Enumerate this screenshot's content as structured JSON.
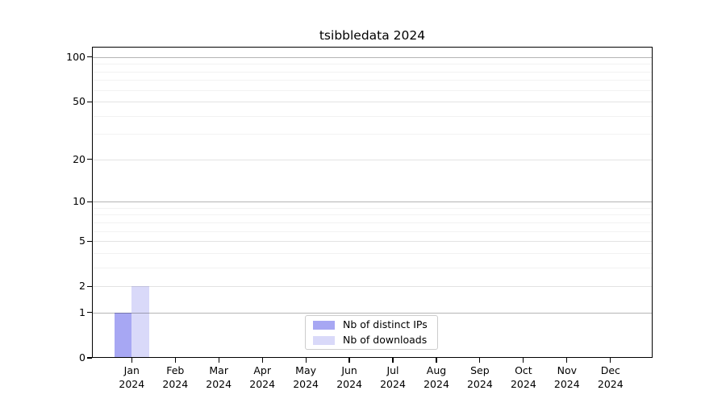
{
  "chart_data": {
    "type": "bar",
    "title": "tsibbledata 2024",
    "categories": [
      "Jan 2024",
      "Feb 2024",
      "Mar 2024",
      "Apr 2024",
      "May 2024",
      "Jun 2024",
      "Jul 2024",
      "Aug 2024",
      "Sep 2024",
      "Oct 2024",
      "Nov 2024",
      "Dec 2024"
    ],
    "series": [
      {
        "name": "Nb of distinct IPs",
        "color": "#a7a7f3",
        "values": [
          1,
          0,
          0,
          0,
          0,
          0,
          0,
          0,
          0,
          0,
          0,
          0
        ]
      },
      {
        "name": "Nb of downloads",
        "color": "#d9d9f9",
        "values": [
          2,
          0,
          0,
          0,
          0,
          0,
          0,
          0,
          0,
          0,
          0,
          0
        ]
      }
    ],
    "yscale": "log10(value+1)",
    "ylim": [
      0,
      118
    ],
    "yticks": [
      0,
      1,
      2,
      5,
      10,
      20,
      50,
      100
    ],
    "yticks_emphasized": [
      1,
      10,
      100
    ],
    "minor_gridlines": [
      3,
      4,
      6,
      7,
      8,
      9,
      30,
      40,
      60,
      70,
      80,
      90
    ],
    "grid": true,
    "legend": {
      "position": "inside-bottom-center",
      "labels": [
        "Nb of distinct IPs",
        "Nb of downloads"
      ]
    }
  },
  "colors": {
    "background": "#ffffff",
    "spine": "#000000",
    "text": "#000000",
    "bar_distinct_ips": "#a7a7f3",
    "bar_downloads": "#d9d9f9",
    "gridline_emphasized": "#b6b6b6",
    "gridline_labeled": "#e3e3e3",
    "gridline_minor": "#f2f2f2",
    "legend_border": "#cccccc"
  }
}
